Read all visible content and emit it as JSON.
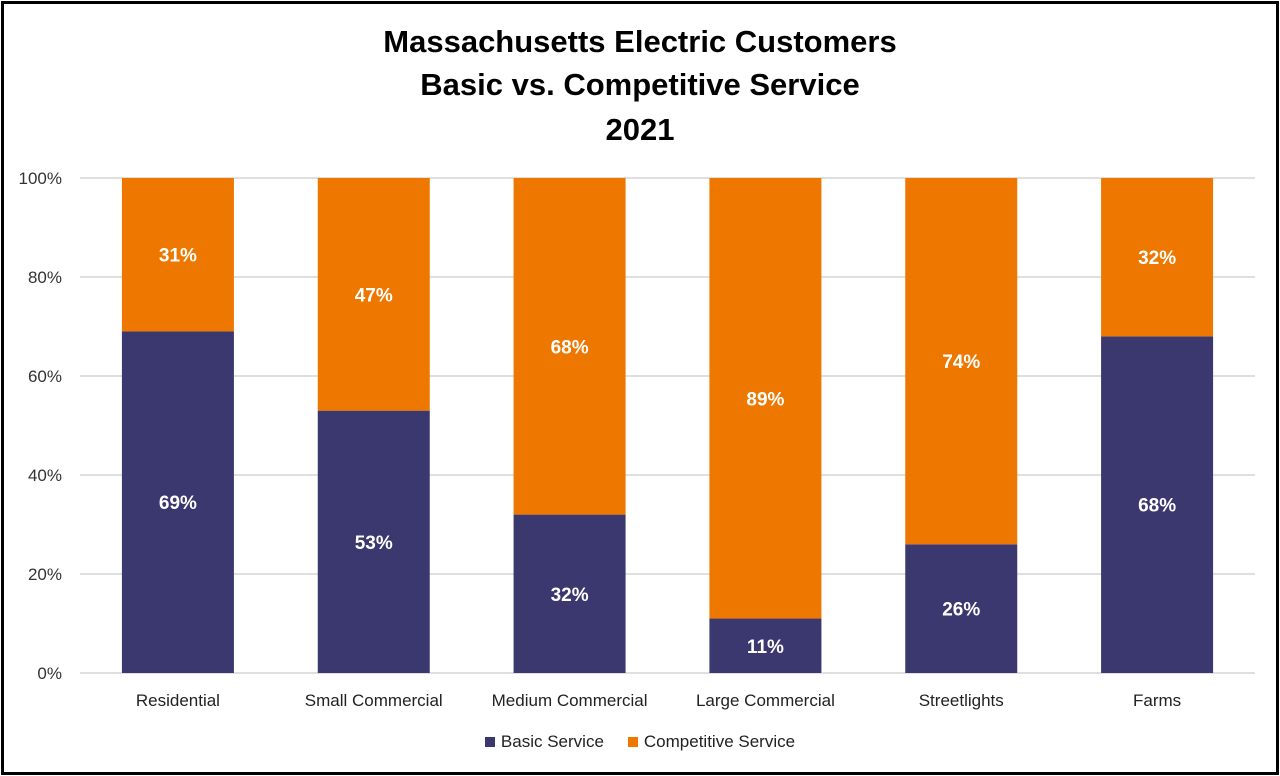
{
  "chart_data": {
    "type": "bar",
    "stacked": true,
    "title": [
      "Massachusetts Electric Customers",
      "Basic vs. Competitive Service",
      "2021"
    ],
    "categories": [
      "Residential",
      "Small Commercial",
      "Medium Commercial",
      "Large Commercial",
      "Streetlights",
      "Farms"
    ],
    "series": [
      {
        "name": "Basic Service",
        "values": [
          69,
          53,
          32,
          11,
          26,
          68
        ],
        "labels": [
          "69%",
          "53%",
          "32%",
          "11%",
          "26%",
          "68%"
        ],
        "color": "#3A386E"
      },
      {
        "name": "Competitive Service",
        "values": [
          31,
          47,
          68,
          89,
          74,
          32
        ],
        "labels": [
          "31%",
          "47%",
          "68%",
          "89%",
          "74%",
          "32%"
        ],
        "color": "#EE7700"
      }
    ],
    "ylim": [
      0,
      100
    ],
    "yticks": [
      "0%",
      "20%",
      "40%",
      "60%",
      "80%",
      "100%"
    ],
    "grid": true,
    "legend": "bottom"
  }
}
